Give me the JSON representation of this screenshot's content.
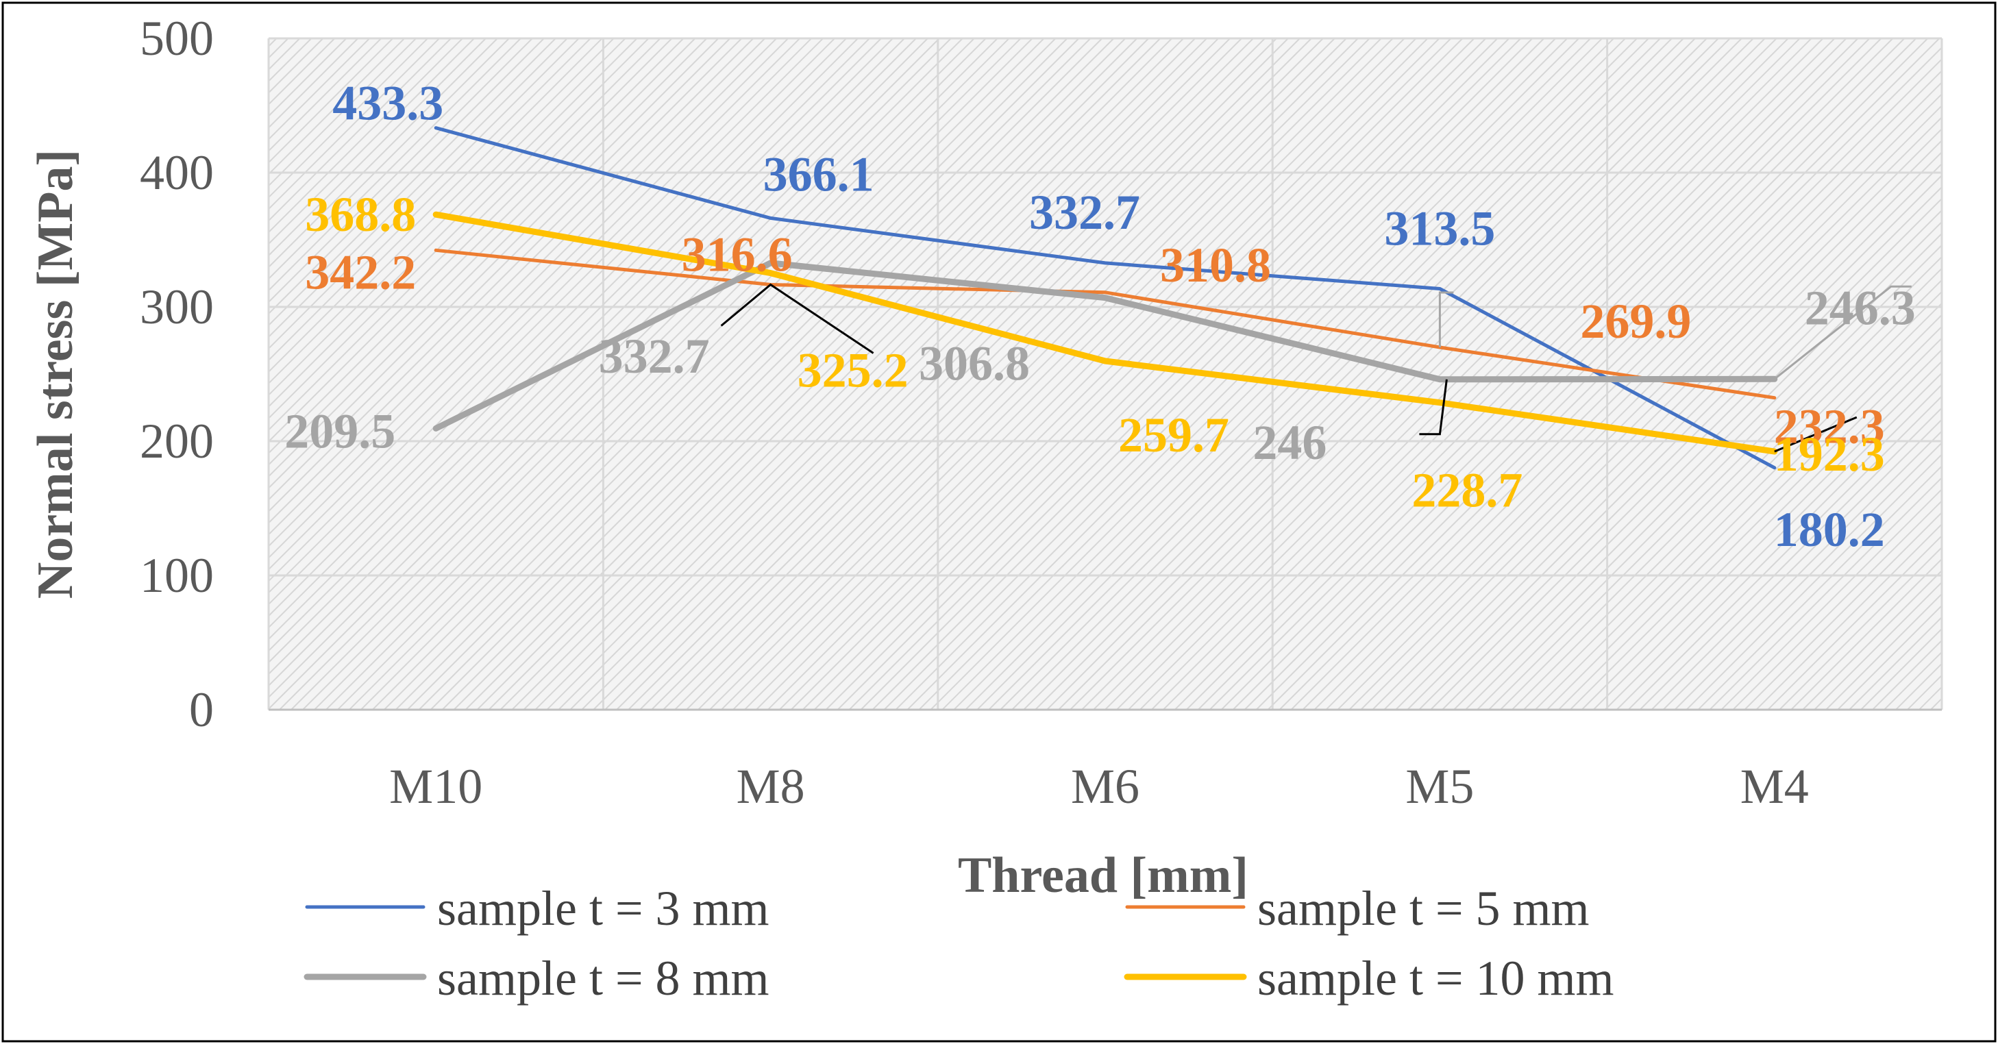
{
  "chart_data": {
    "type": "line",
    "title": "",
    "xlabel": "Thread [mm]",
    "ylabel": "Normal stress [MPa]",
    "categories": [
      "M10",
      "M8",
      "M6",
      "M5",
      "M4"
    ],
    "ylim": [
      0,
      500
    ],
    "yticks": [
      0,
      100,
      200,
      300,
      400,
      500
    ],
    "grid": true,
    "legend_position": "bottom",
    "series": [
      {
        "name": "sample t = 3 mm",
        "color": "#4472c4",
        "values": [
          433.3,
          366.1,
          332.7,
          313.5,
          180.2
        ],
        "labels": [
          "433.3",
          "366.1",
          "332.7",
          "313.5",
          "180.2"
        ]
      },
      {
        "name": "sample t = 5 mm",
        "color": "#ed7d31",
        "values": [
          342.2,
          316.6,
          310.8,
          269.9,
          232.3
        ],
        "labels": [
          "342.2",
          "316.6",
          "310.8",
          "269.9",
          "232.3"
        ]
      },
      {
        "name": "sample t = 8 mm",
        "color": "#a5a5a5",
        "values": [
          209.5,
          332.7,
          306.8,
          246,
          246.3
        ],
        "labels": [
          "209.5",
          "332.7",
          "306.8",
          "246",
          "246.3"
        ]
      },
      {
        "name": "sample t = 10 mm",
        "color": "#ffc000",
        "values": [
          368.8,
          325.2,
          259.7,
          228.7,
          192.3
        ],
        "labels": [
          "368.8",
          "325.2",
          "259.7",
          "228.7",
          "192.3"
        ]
      }
    ]
  }
}
